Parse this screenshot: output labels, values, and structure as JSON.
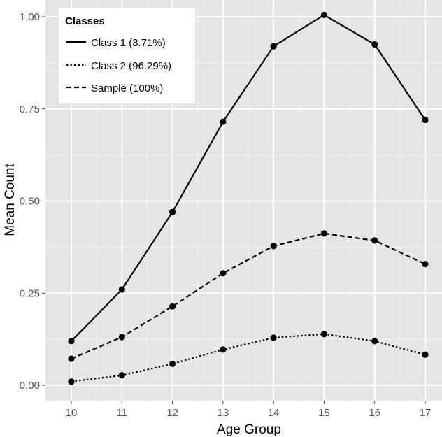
{
  "chart_data": {
    "type": "line",
    "title": "",
    "xlabel": "Age Group",
    "ylabel": "Mean Count",
    "x": [
      10,
      11,
      12,
      13,
      14,
      15,
      16,
      17
    ],
    "xticks": [
      "10",
      "11",
      "12",
      "13",
      "14",
      "15",
      "16",
      "17"
    ],
    "yticks": [
      "0.00",
      "0.25",
      "0.50",
      "0.75",
      "1.00"
    ],
    "ytick_values": [
      0.0,
      0.25,
      0.5,
      0.75,
      1.0
    ],
    "ylim": [
      -0.035,
      1.06
    ],
    "grid": true,
    "legend": {
      "title": "Classes",
      "position": "top-left"
    },
    "series": [
      {
        "name": "Class 1 (3.71%)",
        "style": "solid",
        "values": [
          0.12,
          0.26,
          0.47,
          0.715,
          0.92,
          1.005,
          0.925,
          0.72
        ]
      },
      {
        "name": "Class 2 (96.29%)",
        "style": "dotted",
        "values": [
          0.01,
          0.027,
          0.058,
          0.097,
          0.129,
          0.139,
          0.12,
          0.083
        ]
      },
      {
        "name": "Sample (100%)",
        "style": "dashed",
        "values": [
          0.072,
          0.131,
          0.214,
          0.304,
          0.378,
          0.412,
          0.393,
          0.329
        ]
      }
    ],
    "colors": {
      "panel": "#e5e5e5",
      "grid_major": "#ffffff",
      "grid_minor": "#f2f2f2",
      "line": "#000000"
    }
  }
}
